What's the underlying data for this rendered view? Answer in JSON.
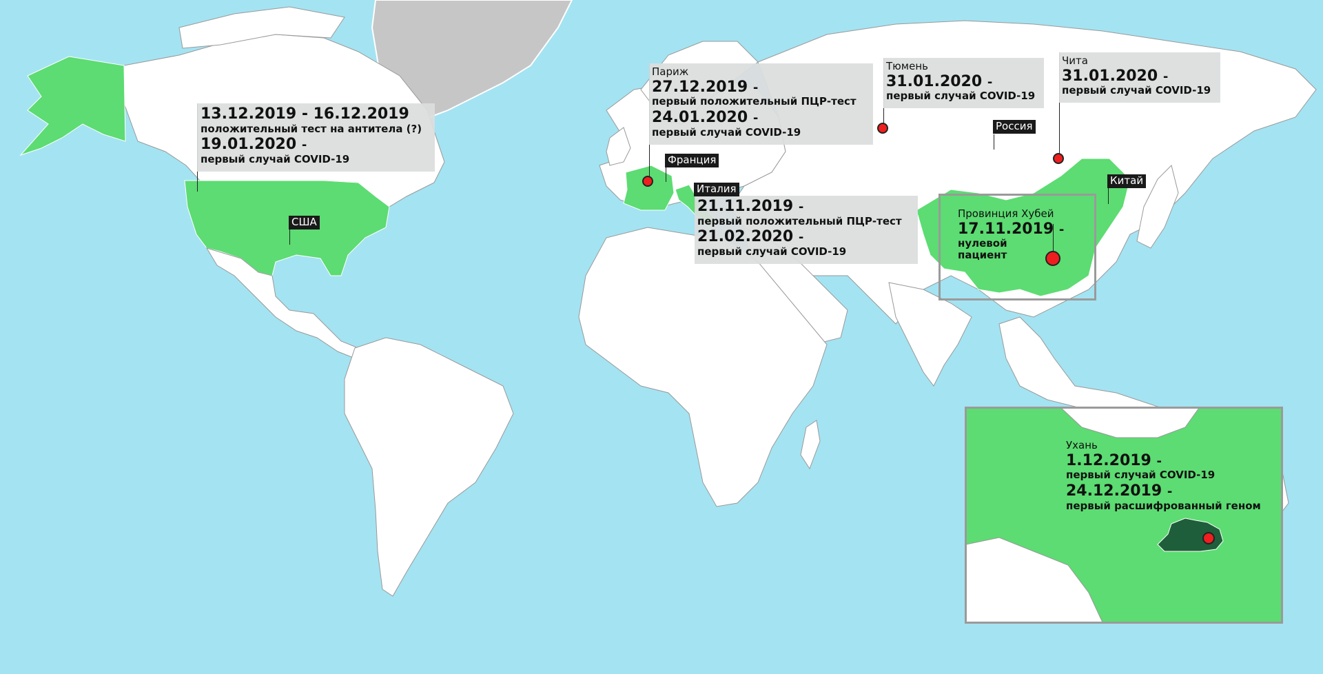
{
  "colors": {
    "ocean": "#a4e3f2",
    "land": "#ffffff",
    "highlight": "#5cdc72",
    "greenland": "#c6c6c6",
    "hubei": "#1f5e3a",
    "pin": "#ef1f1f"
  },
  "countries": {
    "usa": "США",
    "france": "Франция",
    "italy": "Италия",
    "russia": "Россия",
    "china": "Китай"
  },
  "usa": {
    "date1": "13.12.2019 - 16.12.2019",
    "desc1": "положительный тест на антитела (?)",
    "date2": "19.01.2020",
    "dash": "-",
    "desc2": "первый случай COVID-19"
  },
  "paris": {
    "city": "Париж",
    "date1": "27.12.2019",
    "dash": "-",
    "desc1": "первый положительный ПЦР-тест",
    "date2": "24.01.2020",
    "desc2": "первый случай COVID-19"
  },
  "tyumen": {
    "city": "Тюмень",
    "date1": "31.01.2020",
    "dash": "-",
    "desc1": "первый случай COVID-19"
  },
  "chita": {
    "city": "Чита",
    "date1": "31.01.2020",
    "dash": "-",
    "desc1": "первый случай COVID-19"
  },
  "italy": {
    "date1": "21.11.2019",
    "dash": "-",
    "desc1": "первый положительный ПЦР-тест",
    "date2": "21.02.2020",
    "desc2": "первый случай COVID-19"
  },
  "hubei": {
    "title": "Провинция Хубей",
    "date1": "17.11.2019",
    "dash": "-",
    "desc1": "нулевой",
    "desc2": "пациент"
  },
  "wuhan": {
    "city": "Ухань",
    "date1": "1.12.2019",
    "dash": "-",
    "desc1": "первый случай COVID-19",
    "date2": "24.12.2019",
    "desc2": "первый расшифрованный геном"
  }
}
